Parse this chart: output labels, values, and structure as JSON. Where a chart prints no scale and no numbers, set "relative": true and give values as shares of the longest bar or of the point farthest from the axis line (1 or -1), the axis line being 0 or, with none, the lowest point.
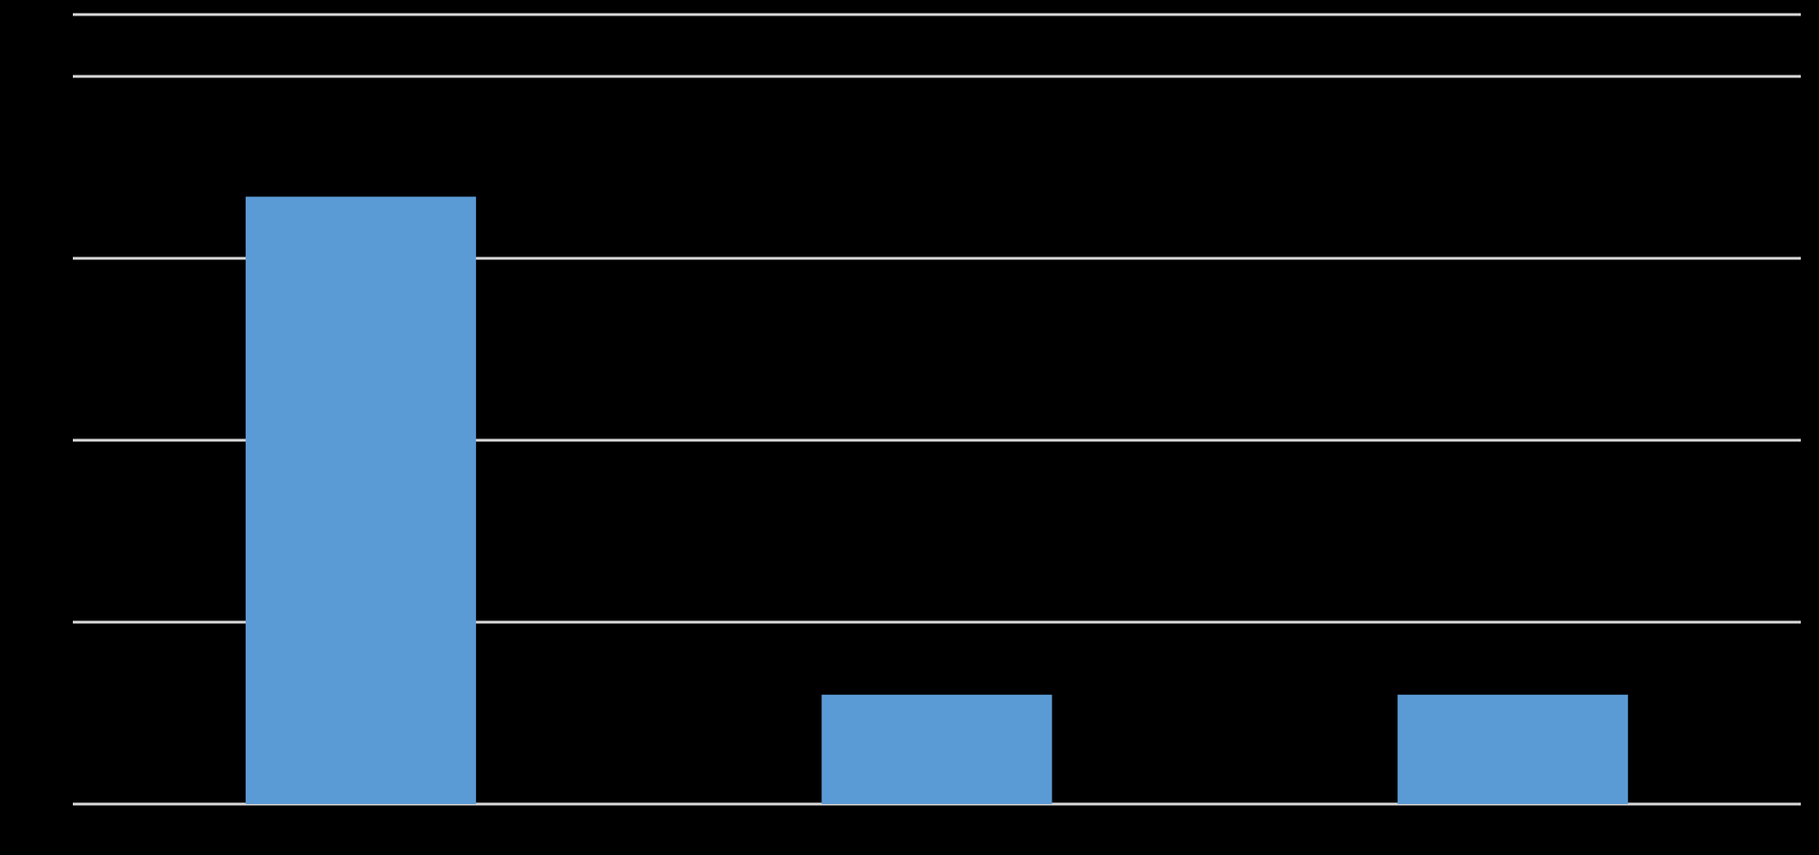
{
  "chart_data": {
    "type": "bar",
    "relative": true,
    "categories": [
      null,
      null,
      null
    ],
    "series": [
      {
        "color": "#5b9bd5",
        "values": [
          1,
          0.18,
          0.18
        ]
      }
    ],
    "grid": "y"
  }
}
